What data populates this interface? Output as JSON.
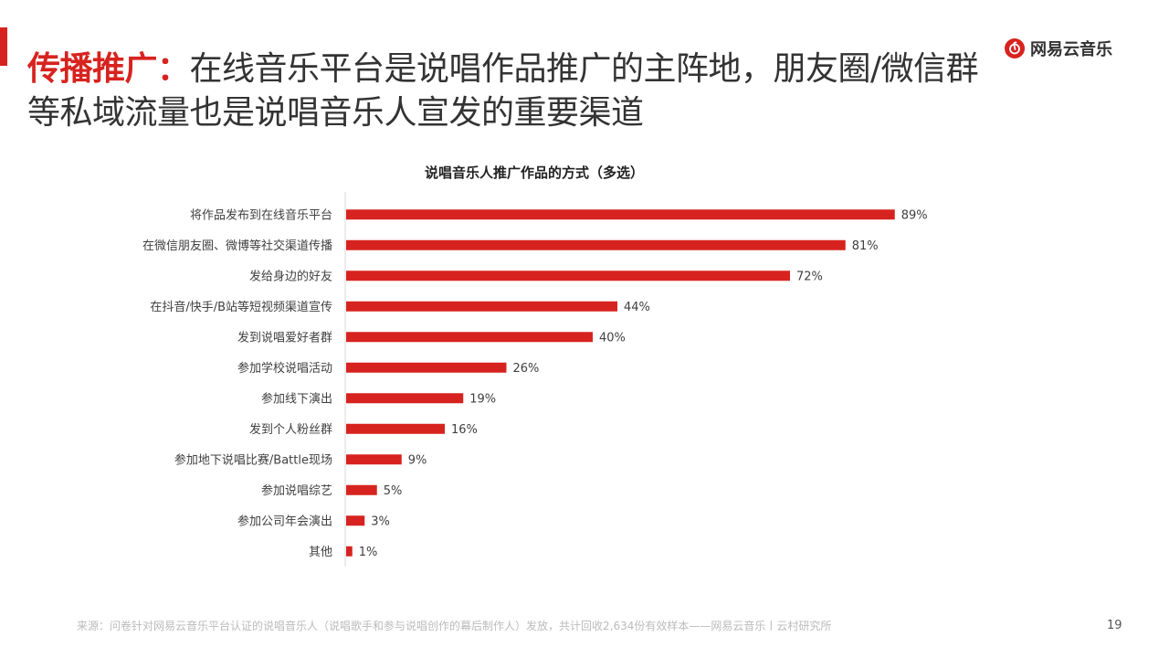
{
  "header": {
    "title_highlight": "传播推广：",
    "title_rest": "在线音乐平台是说唱作品推广的主阵地，朋友圈/微信群等私域流量也是说唱音乐人宣发的重要渠道",
    "brand_name": "网易云音乐",
    "brand_icon": "netease-cloud-music-logo"
  },
  "footer": {
    "source": "来源：问卷针对网易云音乐平台认证的说唱音乐人（说唱歌手和参与说唱创作的幕后制作人）发放，共计回收2,634份有效样本——网易云音乐丨云村研究所",
    "page_number": "19"
  },
  "colors": {
    "accent": "#d7231f",
    "bar": "#d7231f",
    "text": "#333333"
  },
  "chart_data": {
    "type": "bar",
    "orientation": "horizontal",
    "title": "说唱音乐人推广作品的方式（多选）",
    "categories": [
      "将作品发布到在线音乐平台",
      "在微信朋友圈、微博等社交渠道传播",
      "发给身边的好友",
      "在抖音/快手/B站等短视频渠道宣传",
      "发到说唱爱好者群",
      "参加学校说唱活动",
      "参加线下演出",
      "发到个人粉丝群",
      "参加地下说唱比赛/Battle现场",
      "参加说唱综艺",
      "参加公司年会演出",
      "其他"
    ],
    "values": [
      89,
      81,
      72,
      44,
      40,
      26,
      19,
      16,
      9,
      5,
      3,
      1
    ],
    "value_labels": [
      "89%",
      "81%",
      "72%",
      "44%",
      "40%",
      "26%",
      "19%",
      "16%",
      "9%",
      "5%",
      "3%",
      "1%"
    ],
    "xlim": [
      0,
      100
    ],
    "xlabel": "",
    "ylabel": "",
    "grid": false,
    "legend": "none"
  }
}
